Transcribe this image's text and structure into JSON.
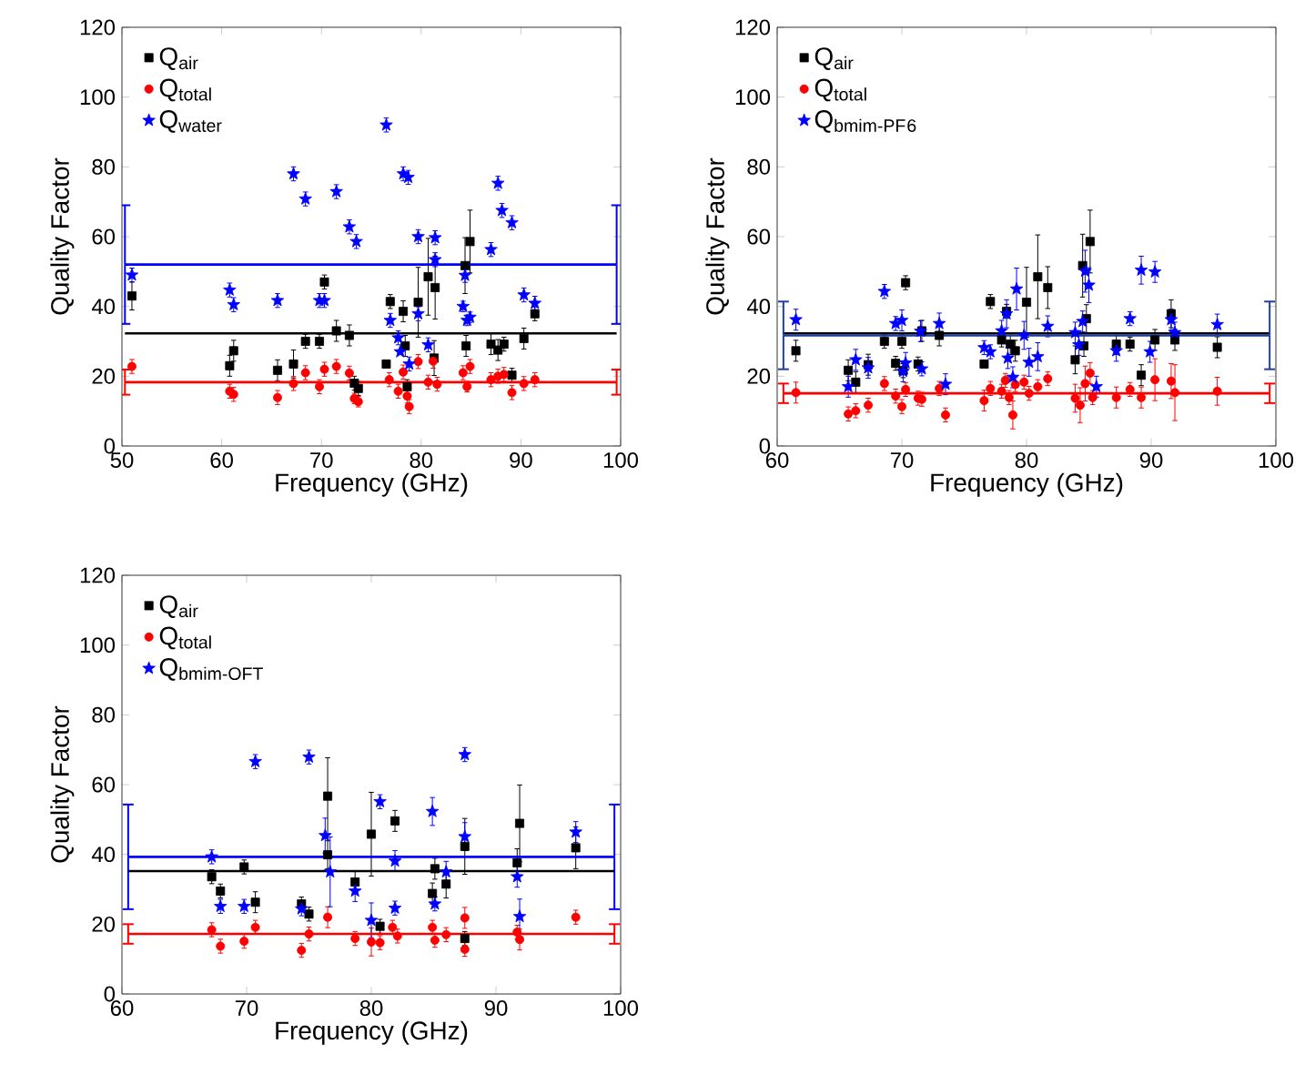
{
  "chart_data": [
    {
      "type": "scatter",
      "xlabel": "Frequency (GHz)",
      "ylabel": "Quality Factor",
      "xlim": [
        50,
        100
      ],
      "ylim": [
        0,
        120
      ],
      "xticks": [
        50,
        60,
        70,
        80,
        90,
        100
      ],
      "yticks": [
        0,
        20,
        40,
        60,
        80,
        100,
        120
      ],
      "legend": "top left",
      "series": [
        {
          "name": "Q$_{air}$",
          "color": "#000000",
          "marker": "square",
          "x": [
            51.0,
            60.8,
            61.2,
            65.6,
            67.2,
            68.4,
            69.8,
            70.3,
            71.5,
            72.8,
            73.3,
            73.7,
            76.5,
            76.9,
            78.2,
            78.4,
            78.6,
            79.7,
            80.7,
            81.3,
            81.4,
            84.4,
            84.5,
            84.9,
            87.0,
            87.7,
            88.3,
            89.1,
            90.3,
            91.4
          ],
          "values": [
            43,
            23,
            27.3,
            21.7,
            23.5,
            30,
            30,
            47,
            33,
            31.7,
            18,
            16.5,
            23.5,
            41.4,
            38.6,
            28.7,
            17,
            41.2,
            48.5,
            25.2,
            45.4,
            51.7,
            28.7,
            58.6,
            29.2,
            27.5,
            29.2,
            20.3,
            30.8,
            37.9
          ],
          "errors": [
            4,
            3,
            3,
            3,
            4,
            2,
            2,
            2,
            3,
            3,
            2,
            2,
            1,
            2,
            3,
            3,
            2,
            10,
            11,
            5,
            9,
            8,
            3,
            9,
            3,
            3,
            2,
            2,
            3,
            2
          ]
        },
        {
          "name": "Q$_{total}$",
          "color": "#ff0000",
          "marker": "circle",
          "x": [
            51.0,
            60.8,
            61.2,
            65.6,
            67.2,
            68.4,
            69.8,
            70.3,
            71.5,
            72.8,
            73.3,
            73.7,
            76.8,
            77.7,
            78.2,
            78.6,
            78.8,
            79.7,
            80.7,
            81.2,
            81.6,
            84.2,
            84.6,
            84.9,
            87.0,
            87.7,
            88.3,
            89.1,
            90.3,
            91.4
          ],
          "values": [
            22.8,
            15.7,
            14.8,
            13.9,
            17.9,
            21,
            17,
            22,
            22.8,
            20.9,
            13.6,
            12.7,
            19,
            15.7,
            21.2,
            14.3,
            11.3,
            24.2,
            18.3,
            24.3,
            17.7,
            21,
            17,
            22.8,
            19,
            20,
            20.5,
            15.3,
            17.9,
            19
          ],
          "errors": [
            2,
            2,
            2,
            2,
            2,
            2,
            2,
            2,
            2,
            2,
            1.5,
            1.5,
            2,
            2,
            2,
            2,
            2,
            2,
            2,
            2,
            2,
            2,
            1.5,
            2,
            2,
            2,
            2,
            2,
            2,
            2
          ]
        },
        {
          "name": "Q$_{water}$",
          "color": "#0000ff",
          "marker": "star",
          "x": [
            51.0,
            60.8,
            61.2,
            65.6,
            67.2,
            68.4,
            69.8,
            70.3,
            71.5,
            72.8,
            73.5,
            76.5,
            76.9,
            77.7,
            77.9,
            78.2,
            78.7,
            78.8,
            79.7,
            79.7,
            80.7,
            81.4,
            81.4,
            84.4,
            84.2,
            84.6,
            84.9,
            87.0,
            87.7,
            88.1,
            89.1,
            90.3,
            91.4
          ],
          "values": [
            49,
            44.7,
            40.5,
            41.7,
            78,
            70.8,
            41.7,
            41.7,
            72.9,
            62.8,
            58.6,
            92,
            36,
            31,
            27,
            78,
            77,
            23.5,
            60,
            37.9,
            29,
            59.7,
            53.4,
            48.9,
            40,
            36,
            36.9,
            56.3,
            75.3,
            67.5,
            64,
            43.3,
            40.9
          ],
          "errors": [
            2,
            2,
            2,
            2,
            2,
            2,
            2,
            2,
            2,
            2,
            2,
            2,
            2,
            2,
            null,
            2,
            2,
            2,
            2,
            2,
            2,
            2,
            2,
            2,
            1.5,
            1.5,
            1.5,
            2,
            2,
            2,
            2,
            2,
            2
          ]
        },
        {
          "type": "line",
          "color": "#0000ff",
          "marker": "none",
          "x": [
            50.3,
            99.6
          ],
          "values": [
            52,
            52
          ],
          "errors": [
            17,
            17
          ]
        },
        {
          "type": "line",
          "color": "#000000",
          "marker": "none",
          "x": [
            50.3,
            99.6
          ],
          "values": [
            32.3,
            32.3
          ]
        },
        {
          "type": "line",
          "color": "#ff0000",
          "marker": "none",
          "x": [
            50.3,
            99.6
          ],
          "values": [
            18.3,
            18.3
          ],
          "errors": [
            3.6,
            3.6
          ]
        }
      ]
    },
    {
      "type": "scatter",
      "xlabel": "Frequency (GHz)",
      "ylabel": "Quality Factor",
      "xlim": [
        60,
        100
      ],
      "ylim": [
        0,
        120
      ],
      "xticks": [
        60,
        70,
        80,
        90,
        100
      ],
      "yticks": [
        0,
        20,
        40,
        60,
        80,
        100,
        120
      ],
      "legend": "top left",
      "series": [
        {
          "name": "Q$_{air}$",
          "color": "#000000",
          "marker": "square",
          "x": [
            61.5,
            65.7,
            66.3,
            67.3,
            68.6,
            69.5,
            70.0,
            70.1,
            70.3,
            71.3,
            71.6,
            73.0,
            76.6,
            77.1,
            78.0,
            78.4,
            78.7,
            79.1,
            80.0,
            80.9,
            81.7,
            83.9,
            84.5,
            84.6,
            84.8,
            85.1,
            87.2,
            88.3,
            89.2,
            90.3,
            91.6,
            91.9,
            95.3
          ],
          "values": [
            27.3,
            21.7,
            18.3,
            23.3,
            30,
            23.7,
            30,
            21.6,
            46.8,
            23.5,
            33,
            31.7,
            23.5,
            41.4,
            30.4,
            38.6,
            29.2,
            27.3,
            41.2,
            48.5,
            45.4,
            24.7,
            51.7,
            28.7,
            36.5,
            58.6,
            29.2,
            29.2,
            20.3,
            30.4,
            37.9,
            30.4,
            28.3
          ],
          "errors": [
            3,
            3,
            3,
            3,
            2,
            2,
            2,
            2,
            2,
            2,
            3,
            3,
            1,
            2,
            2,
            2,
            3,
            3,
            10,
            12,
            6,
            4,
            9,
            3,
            4,
            9,
            3,
            2,
            3,
            3,
            4,
            3,
            3
          ]
        },
        {
          "name": "Q$_{total}$",
          "color": "#ff0000",
          "marker": "circle",
          "x": [
            61.5,
            65.7,
            66.3,
            67.3,
            68.6,
            69.5,
            70.0,
            70.3,
            71.3,
            71.6,
            73.0,
            73.5,
            76.6,
            77.1,
            78.0,
            78.3,
            78.6,
            78.9,
            79.1,
            79.8,
            80.2,
            80.9,
            81.7,
            83.9,
            84.3,
            84.7,
            85.1,
            85.3,
            87.2,
            88.3,
            89.2,
            90.3,
            91.6,
            91.9,
            95.3
          ],
          "values": [
            15.3,
            9.2,
            10.1,
            11.7,
            17.9,
            14.3,
            11.3,
            16.2,
            13.7,
            13.4,
            16.5,
            8.9,
            13,
            16.5,
            15.7,
            18.8,
            13.9,
            8.9,
            17.6,
            18.3,
            15.1,
            17,
            19.3,
            13.7,
            11.7,
            17.9,
            20.9,
            13.9,
            13.9,
            16.2,
            13.9,
            19,
            18.6,
            15.3,
            15.7
          ],
          "errors": [
            3,
            2,
            2,
            2,
            2,
            2,
            2,
            2,
            2,
            2,
            2,
            2,
            3,
            2,
            2,
            2,
            2,
            4,
            2,
            2,
            2,
            2,
            2,
            4,
            5,
            5,
            3,
            2,
            3,
            2,
            3,
            6,
            5,
            8,
            4
          ]
        },
        {
          "name": "Q$_{bmim-PF}$$_{6}$",
          "color": "#0000ff",
          "marker": "star",
          "x": [
            61.5,
            65.7,
            66.3,
            67.3,
            68.6,
            69.5,
            70.0,
            70.1,
            70.3,
            71.5,
            71.6,
            73.0,
            73.5,
            76.6,
            77.1,
            78.0,
            78.4,
            78.5,
            78.9,
            79.2,
            79.8,
            80.2,
            80.9,
            81.7,
            83.9,
            84.5,
            84.2,
            84.7,
            85.0,
            85.6,
            87.2,
            88.3,
            89.2,
            89.9,
            90.3,
            91.6,
            91.9,
            95.3
          ],
          "values": [
            36.2,
            17,
            24.7,
            22.4,
            44.3,
            35.1,
            36,
            21.4,
            23.8,
            32.9,
            22.1,
            35.1,
            17.7,
            28.2,
            27,
            33,
            37.9,
            25.2,
            19.7,
            45,
            31.7,
            24,
            25.6,
            34.3,
            32.5,
            35.7,
            29,
            50.1,
            46.1,
            17,
            27.3,
            36.5,
            50.4,
            27,
            49.9,
            36.2,
            32.5,
            34.8
          ],
          "errors": [
            3,
            3,
            3,
            3,
            2,
            2,
            3,
            3,
            3,
            3,
            2,
            3,
            3,
            2,
            2,
            3,
            4,
            3,
            3,
            6,
            4,
            4,
            4,
            3,
            3,
            3,
            3,
            6,
            5,
            3,
            3,
            2,
            4,
            3,
            3,
            3,
            3,
            3
          ]
        },
        {
          "type": "line",
          "color": "#000000",
          "marker": "none",
          "x": [
            60.5,
            99.5
          ],
          "values": [
            32.3,
            32.3
          ]
        },
        {
          "type": "line",
          "color": "#1f3f9f",
          "marker": "none",
          "x": [
            60.5,
            99.5
          ],
          "values": [
            31.7,
            31.7
          ],
          "errors": [
            9.7,
            9.7
          ]
        },
        {
          "type": "line",
          "color": "#ff0000",
          "marker": "none",
          "x": [
            60.5,
            99.5
          ],
          "values": [
            15.1,
            15.1
          ],
          "errors": [
            2.8,
            2.8
          ]
        }
      ]
    },
    {
      "type": "scatter",
      "xlabel": "Frequency (GHz)",
      "ylabel": "Quality Factor",
      "xlim": [
        60,
        100
      ],
      "ylim": [
        0,
        120
      ],
      "xticks": [
        60,
        70,
        80,
        90,
        100
      ],
      "yticks": [
        0,
        20,
        40,
        60,
        80,
        100,
        120
      ],
      "legend": "top left",
      "series": [
        {
          "name": "Q$_{air}$",
          "color": "#000000",
          "marker": "square",
          "x": [
            67.2,
            67.9,
            69.8,
            70.7,
            74.4,
            75.0,
            76.5,
            76.5,
            78.7,
            80.0,
            80.7,
            81.9,
            84.9,
            85.1,
            86.0,
            87.5,
            87.5,
            91.7,
            91.9,
            96.4
          ],
          "values": [
            33.6,
            29.5,
            36.4,
            26.3,
            25.8,
            22.9,
            56.7,
            39.9,
            32.1,
            45.8,
            19.4,
            49.6,
            28.8,
            35.9,
            31.5,
            15.9,
            42.3,
            37.6,
            48.9,
            41.9
          ],
          "errors": [
            2,
            2,
            2,
            3,
            2,
            2,
            11,
            4,
            3,
            12,
            2,
            3,
            3,
            3,
            4,
            2,
            8,
            4,
            11,
            6
          ]
        },
        {
          "name": "Q$_{total}$",
          "color": "#ff0000",
          "marker": "circle",
          "x": [
            67.2,
            67.9,
            69.8,
            70.7,
            74.4,
            75.0,
            76.5,
            78.7,
            80.0,
            80.7,
            81.7,
            82.1,
            84.9,
            85.1,
            86.0,
            87.5,
            87.5,
            91.7,
            91.9,
            96.4
          ],
          "values": [
            18.4,
            13.7,
            15.1,
            19.1,
            12.5,
            17.2,
            22,
            15.9,
            14.9,
            14.7,
            19.1,
            16.6,
            19.1,
            15.4,
            17,
            21.8,
            12.8,
            17.7,
            15.6,
            22
          ],
          "errors": [
            2,
            2,
            2,
            2,
            2,
            2,
            3,
            2,
            4,
            2,
            2,
            2,
            2,
            2,
            2,
            3,
            2,
            2,
            3,
            2
          ]
        },
        {
          "name": "Q$_{bmim-OFT}$",
          "color": "#0000ff",
          "marker": "star",
          "x": [
            67.2,
            67.9,
            69.8,
            70.7,
            74.4,
            75.0,
            76.3,
            76.7,
            78.7,
            80.0,
            80.7,
            81.9,
            81.9,
            84.9,
            85.1,
            86.0,
            87.5,
            87.5,
            91.7,
            91.9,
            96.4
          ],
          "values": [
            39.3,
            25.1,
            25.1,
            66.6,
            24.4,
            67.9,
            45.4,
            35,
            29.5,
            21.1,
            55.1,
            38.1,
            24.6,
            52.3,
            25.8,
            35,
            45.1,
            68.6,
            33.6,
            22.2,
            46.4
          ],
          "errors": [
            2,
            2,
            2,
            2,
            2,
            2,
            5,
            10,
            3,
            5,
            2,
            3,
            2,
            4,
            2,
            3,
            4,
            2,
            3,
            5,
            3
          ]
        },
        {
          "type": "line",
          "color": "#0000ff",
          "marker": "none",
          "x": [
            60.5,
            99.5
          ],
          "values": [
            39.3,
            39.3
          ],
          "errors": [
            15,
            15
          ]
        },
        {
          "type": "line",
          "color": "#000000",
          "marker": "none",
          "x": [
            60.5,
            99.5
          ],
          "values": [
            35.2,
            35.2
          ]
        },
        {
          "type": "line",
          "color": "#ff0000",
          "marker": "none",
          "x": [
            60.5,
            99.5
          ],
          "values": [
            17.2,
            17.2
          ],
          "errors": [
            2.8,
            2.8
          ]
        }
      ]
    }
  ]
}
